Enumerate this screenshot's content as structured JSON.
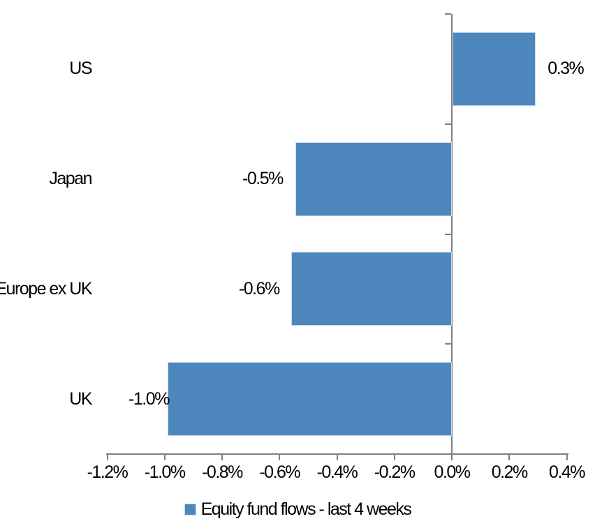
{
  "chart_data": {
    "type": "bar",
    "orientation": "horizontal",
    "title": "",
    "categories": [
      "US",
      "Japan",
      "Europe ex UK",
      "UK"
    ],
    "values": [
      0.3,
      -0.5,
      -0.6,
      -1.0
    ],
    "values_precise_pct": [
      0.29,
      -0.545,
      -0.56,
      -0.99
    ],
    "data_labels": [
      "0.3%",
      "-0.5%",
      "-0.6%",
      "-1.0%"
    ],
    "unit": "%",
    "xlim": [
      -1.2,
      0.4
    ],
    "x_ticks": [
      {
        "label": "-1.2%",
        "value": -1.2
      },
      {
        "label": "-1.0%",
        "value": -1.0
      },
      {
        "label": "-0.8%",
        "value": -0.8
      },
      {
        "label": "-0.6%",
        "value": -0.6
      },
      {
        "label": "-0.4%",
        "value": -0.4
      },
      {
        "label": "-0.2%",
        "value": -0.2
      },
      {
        "label": "0.0%",
        "value": 0.0
      },
      {
        "label": "0.2%",
        "value": 0.2
      },
      {
        "label": "0.4%",
        "value": 0.4
      }
    ],
    "grid": false,
    "legend": {
      "position": "bottom",
      "items": [
        {
          "label": "Equity fund flows - last 4 weeks",
          "swatch_color": "#4E86BE"
        }
      ]
    },
    "colors": {
      "bar_fill": "#4E86BE",
      "bar_border": "#C9DBEC",
      "axis_line": "#808080",
      "text": "#000000",
      "background": "#FFFFFF"
    }
  }
}
